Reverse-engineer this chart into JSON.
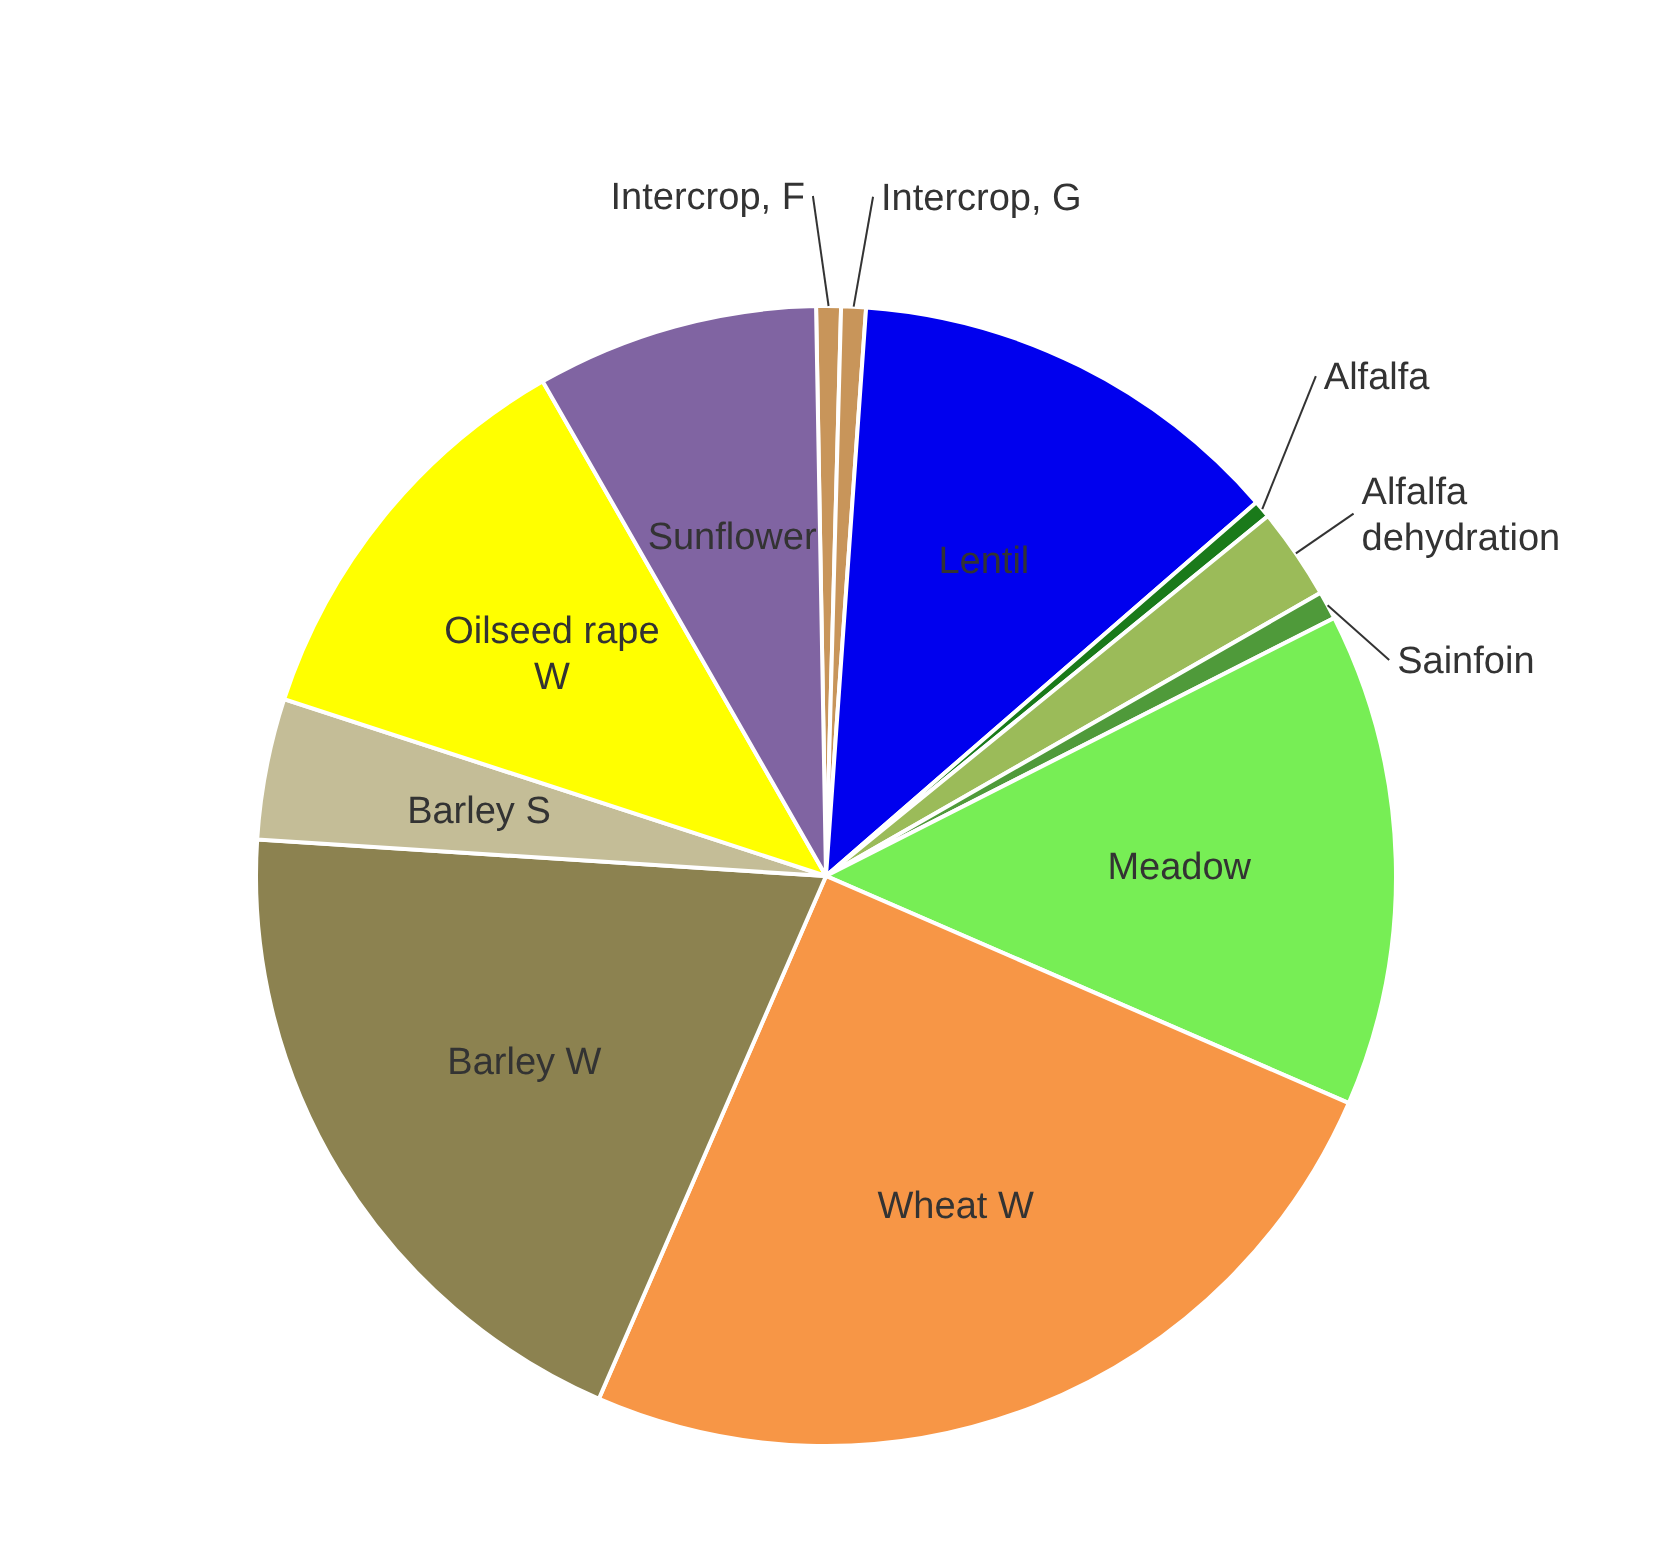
{
  "chart_data": {
    "type": "pie",
    "categories": [
      "Intercrop, F",
      "Intercrop, G",
      "Lentil",
      "Alfalfa",
      "Alfalfa dehydration",
      "Sainfoin",
      "Meadow",
      "Wheat W",
      "Barley W",
      "Barley S",
      "Oilseed rape W",
      "Sunflower"
    ],
    "values": [
      0.7,
      0.7,
      12.5,
      0.5,
      2.6,
      0.8,
      14,
      25,
      19.5,
      4,
      11.7,
      8
    ],
    "colors": [
      "#c8955a",
      "#c8955a",
      "#0000ee",
      "#1a7a1a",
      "#9bbb59",
      "#4f9a3a",
      "#77ee55",
      "#f79646",
      "#8c8250",
      "#c4bd97",
      "#ffff00",
      "#8064a2"
    ],
    "legend": false
  }
}
